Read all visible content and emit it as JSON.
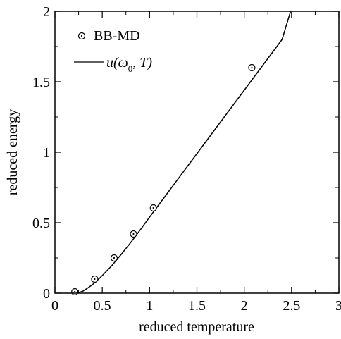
{
  "chart_data": {
    "type": "line",
    "xlabel": "reduced temperature",
    "ylabel": "reduced energy",
    "xlim": [
      0,
      3
    ],
    "ylim": [
      0,
      2
    ],
    "x_ticks": [
      "0",
      "0.5",
      "1",
      "1.5",
      "2",
      "2.5",
      "3"
    ],
    "y_ticks": [
      "0",
      "0.5",
      "1",
      "1.5",
      "2"
    ],
    "grid": false,
    "legend_position": "top-left",
    "series": [
      {
        "name": "BB-MD",
        "kind": "scatter",
        "marker": "open-circle-dot",
        "x": [
          0.21,
          0.42,
          0.625,
          0.83,
          1.04,
          2.08
        ],
        "y": [
          0.01,
          0.1,
          0.25,
          0.42,
          0.605,
          1.6
        ]
      },
      {
        "name": "u(ω0, T)",
        "kind": "line",
        "x": [
          0.24,
          0.3,
          0.35,
          0.4,
          0.45,
          0.5,
          0.6,
          0.7,
          0.8,
          0.9,
          1.0,
          1.2,
          1.4,
          1.6,
          1.8,
          2.0,
          2.2,
          2.4,
          2.49
        ],
        "y": [
          0.0,
          0.016,
          0.038,
          0.063,
          0.093,
          0.125,
          0.195,
          0.275,
          0.359,
          0.448,
          0.54,
          0.72,
          0.9,
          1.08,
          1.26,
          1.44,
          1.62,
          1.8,
          2.0
        ]
      }
    ]
  },
  "legend": {
    "scatter_label": "BB-MD",
    "line_label_prefix": "u(ω",
    "line_label_subscript": "0",
    "line_label_suffix": ", T)"
  },
  "colors": {
    "ink": "#000000",
    "background": "#ffffff"
  }
}
